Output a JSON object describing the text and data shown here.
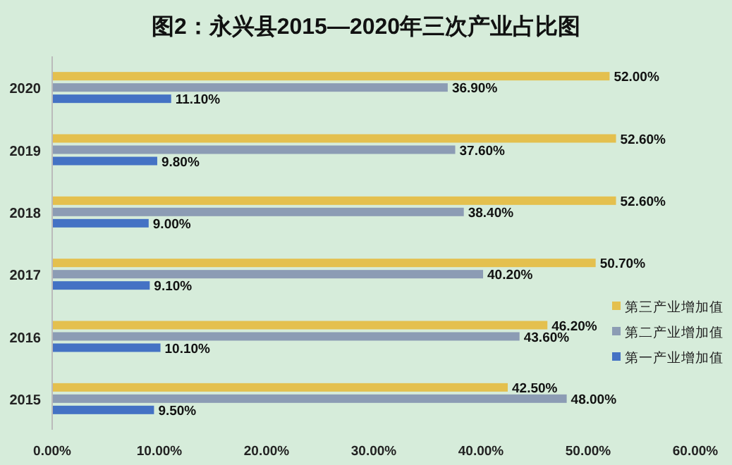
{
  "chart_data": {
    "type": "bar",
    "orientation": "horizontal",
    "title": "图2：永兴县2015—2020年三次产业占比图",
    "categories": [
      "2020",
      "2019",
      "2018",
      "2017",
      "2016",
      "2015"
    ],
    "series": [
      {
        "name": "第三产业增加值",
        "color": "#e4c04e",
        "values": [
          52.0,
          52.6,
          52.6,
          50.7,
          46.2,
          42.5
        ],
        "value_labels": [
          "52.00%",
          "52.60%",
          "52.60%",
          "50.70%",
          "46.20%",
          "42.50%"
        ]
      },
      {
        "name": "第二产业增加值",
        "color": "#8c9cb4",
        "values": [
          36.9,
          37.6,
          38.4,
          40.2,
          43.6,
          48.0
        ],
        "value_labels": [
          "36.90%",
          "37.60%",
          "38.40%",
          "40.20%",
          "43.60%",
          "48.00%"
        ]
      },
      {
        "name": "第一产业增加值",
        "color": "#4472c4",
        "values": [
          11.1,
          9.8,
          9.0,
          9.1,
          10.1,
          9.5
        ],
        "value_labels": [
          "11.10%",
          "9.80%",
          "9.00%",
          "9.10%",
          "10.10%",
          "9.50%"
        ]
      }
    ],
    "xlim": [
      0,
      60
    ],
    "xticks": [
      {
        "value": 0,
        "label": "0.00%"
      },
      {
        "value": 10,
        "label": "10.00%"
      },
      {
        "value": 20,
        "label": "20.00%"
      },
      {
        "value": 30,
        "label": "30.00%"
      },
      {
        "value": 40,
        "label": "40.00%"
      },
      {
        "value": 50,
        "label": "50.00%"
      },
      {
        "value": 60,
        "label": "60.00%"
      }
    ],
    "legend": "right"
  }
}
